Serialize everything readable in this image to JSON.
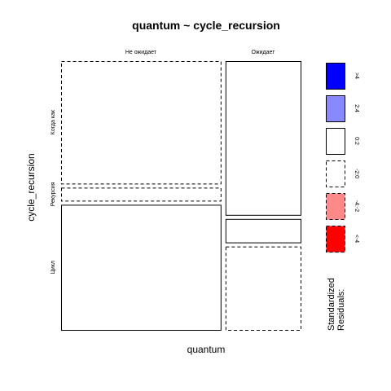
{
  "chart_data": {
    "type": "mosaic",
    "title": "quantum ~ cycle_recursion",
    "xlabel": "quantum",
    "ylabel": "cycle_recursion",
    "x_categories": [
      "Не ожидает",
      "Ожидает"
    ],
    "y_categories": [
      "Когда как",
      "Рекурсия",
      "Цикл"
    ],
    "x_proportions": [
      0.68,
      0.32
    ],
    "y_proportions_by_x": [
      [
        0.47,
        0.05,
        0.48
      ],
      [
        0.59,
        0.09,
        0.32
      ]
    ],
    "residual_bins_by_x": [
      [
        "-2:0",
        "-2:0",
        "0:2"
      ],
      [
        "0:2",
        "0:2",
        "-2:0"
      ]
    ],
    "legend": {
      "title_line1": "Standardized",
      "title_line2": "Residuals:",
      "entries": [
        {
          "label": ">4",
          "fill": "#0000ff",
          "dashed": false
        },
        {
          "label": "2:4",
          "fill": "#8888ff",
          "dashed": false
        },
        {
          "label": "0:2",
          "fill": "#ffffff",
          "dashed": false
        },
        {
          "label": "-2:0",
          "fill": "#ffffff",
          "dashed": true
        },
        {
          "label": "-4:-2",
          "fill": "#ff8888",
          "dashed": true
        },
        {
          "label": "<-4",
          "fill": "#ff0000",
          "dashed": true
        }
      ]
    }
  }
}
